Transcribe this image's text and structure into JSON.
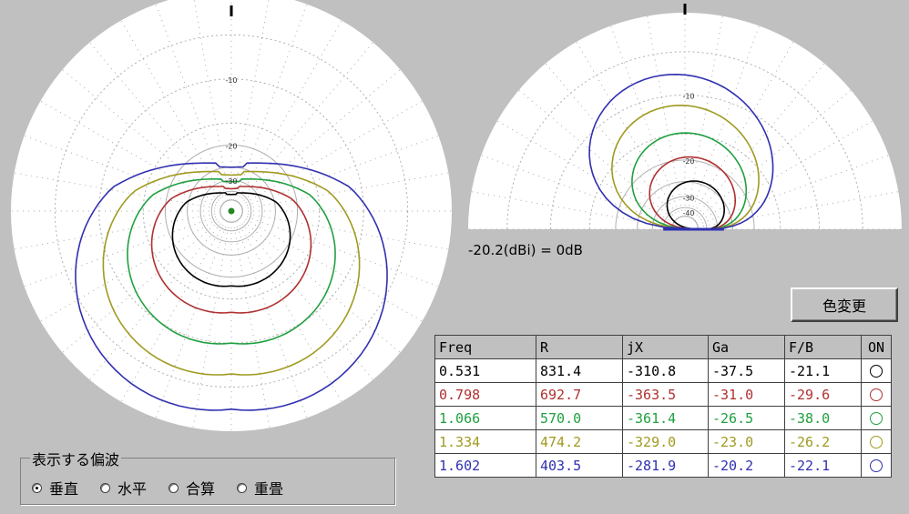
{
  "main_plot": {
    "ring_labels": [
      "-10",
      "-20",
      "-30"
    ]
  },
  "elevation_plot": {
    "ring_labels": [
      "-10",
      "-20",
      "-30",
      "-40"
    ]
  },
  "reference_label": "-20.2(dBi) = 0dB",
  "color_button_label": "色変更",
  "polarization_group": {
    "title": "表示する偏波",
    "options": [
      {
        "label": "垂直",
        "checked": true
      },
      {
        "label": "水平",
        "checked": false
      },
      {
        "label": "合算",
        "checked": false
      },
      {
        "label": "重畳",
        "checked": false
      }
    ]
  },
  "table": {
    "headers": [
      "Freq",
      "R",
      "jX",
      "Ga",
      "F/B",
      "ON"
    ],
    "rows": [
      {
        "freq": "0.531",
        "r": "831.4",
        "jx": "-310.8",
        "ga": "-37.5",
        "fb": "-21.1",
        "color": "#000000"
      },
      {
        "freq": "0.798",
        "r": "692.7",
        "jx": "-363.5",
        "ga": "-31.0",
        "fb": "-29.6",
        "color": "#b03030"
      },
      {
        "freq": "1.066",
        "r": "570.0",
        "jx": "-361.4",
        "ga": "-26.5",
        "fb": "-38.0",
        "color": "#20a040"
      },
      {
        "freq": "1.334",
        "r": "474.2",
        "jx": "-329.0",
        "ga": "-23.0",
        "fb": "-26.2",
        "color": "#a09a20"
      },
      {
        "freq": "1.602",
        "r": "403.5",
        "jx": "-281.9",
        "ga": "-20.2",
        "fb": "-22.1",
        "color": "#3030b0"
      }
    ]
  }
}
